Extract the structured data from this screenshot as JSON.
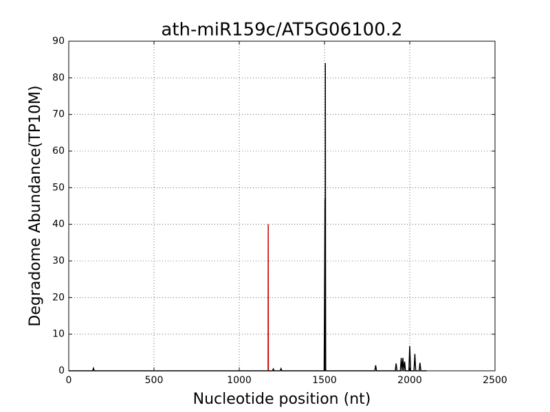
{
  "chart_data": {
    "type": "line",
    "title": "ath-miR159c/AT5G06100.2",
    "xlabel": "Nucleotide position (nt)",
    "ylabel": "Degradome Abundance(TP10M)",
    "xlim": [
      0,
      2500
    ],
    "ylim": [
      0,
      90
    ],
    "xticks": [
      0,
      500,
      1000,
      1500,
      2000,
      2500
    ],
    "yticks": [
      0,
      10,
      20,
      30,
      40,
      50,
      60,
      70,
      80,
      90
    ],
    "grid": true,
    "series": [
      {
        "color": "#000000",
        "x": [
          0,
          140,
          145,
          150,
          1195,
          1200,
          1205,
          1240,
          1245,
          1250,
          1498,
          1503,
          1504,
          1505,
          1506,
          1507,
          1512,
          1795,
          1800,
          1805,
          1915,
          1920,
          1925,
          1945,
          1950,
          1955,
          1960,
          1965,
          1970,
          1975,
          1995,
          2000,
          2005,
          2025,
          2030,
          2035,
          2055,
          2060,
          2065,
          2100
        ],
        "values": [
          0,
          0,
          0.7,
          0,
          0,
          0.5,
          0,
          0,
          0.6,
          0,
          0,
          47,
          0,
          84,
          30,
          0,
          0,
          0,
          1.5,
          0,
          0,
          2,
          0,
          0,
          3.5,
          0,
          3.5,
          0,
          2.5,
          0,
          0,
          6.8,
          0,
          0,
          4.6,
          0,
          0,
          2.2,
          0,
          0
        ]
      },
      {
        "color": "#cc0000",
        "x": [
          1169,
          1170,
          1171
        ],
        "values": [
          0,
          40,
          0
        ]
      }
    ]
  }
}
